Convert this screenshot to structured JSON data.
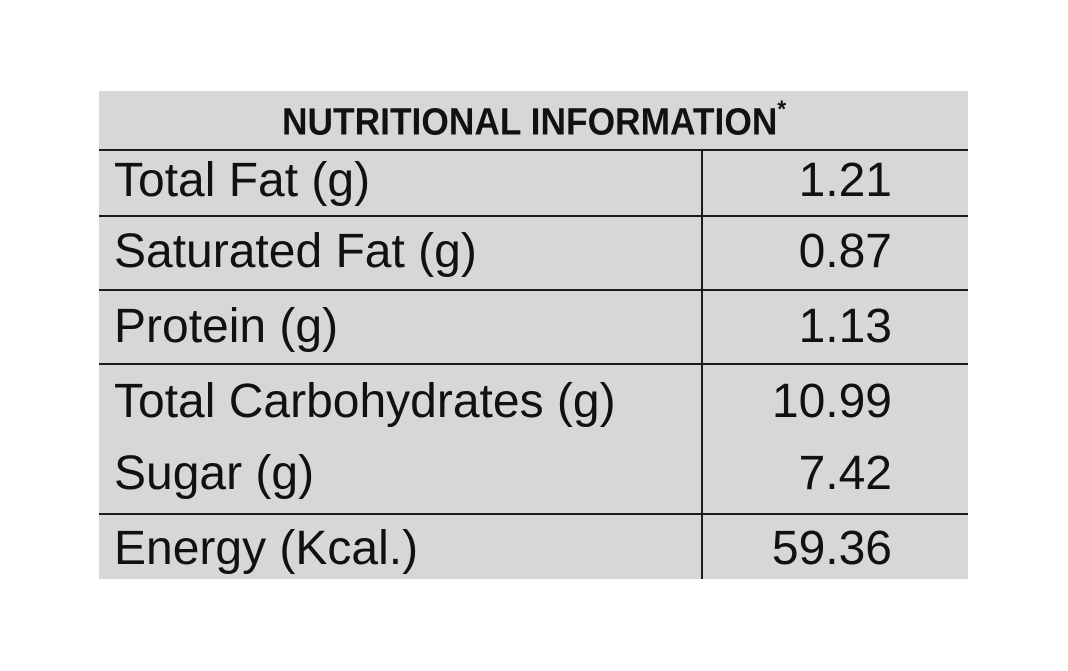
{
  "panel": {
    "title": "NUTRITIONAL INFORMATION",
    "title_mark": "*"
  },
  "rows": [
    {
      "label": "Total Fat (g)",
      "value": "1.21"
    },
    {
      "label": "Saturated Fat (g)",
      "value": "0.87"
    },
    {
      "label": "Protein (g)",
      "value": "1.13"
    },
    {
      "label": "Total Carbohydrates (g)",
      "value": "10.99"
    },
    {
      "label": "Sugar (g)",
      "value": "7.42"
    },
    {
      "label": "Energy (Kcal.)",
      "value": "59.36"
    }
  ],
  "colors": {
    "panel_background": "#d7d7d9",
    "text": "#111111",
    "rule": "#1b1b1b"
  }
}
